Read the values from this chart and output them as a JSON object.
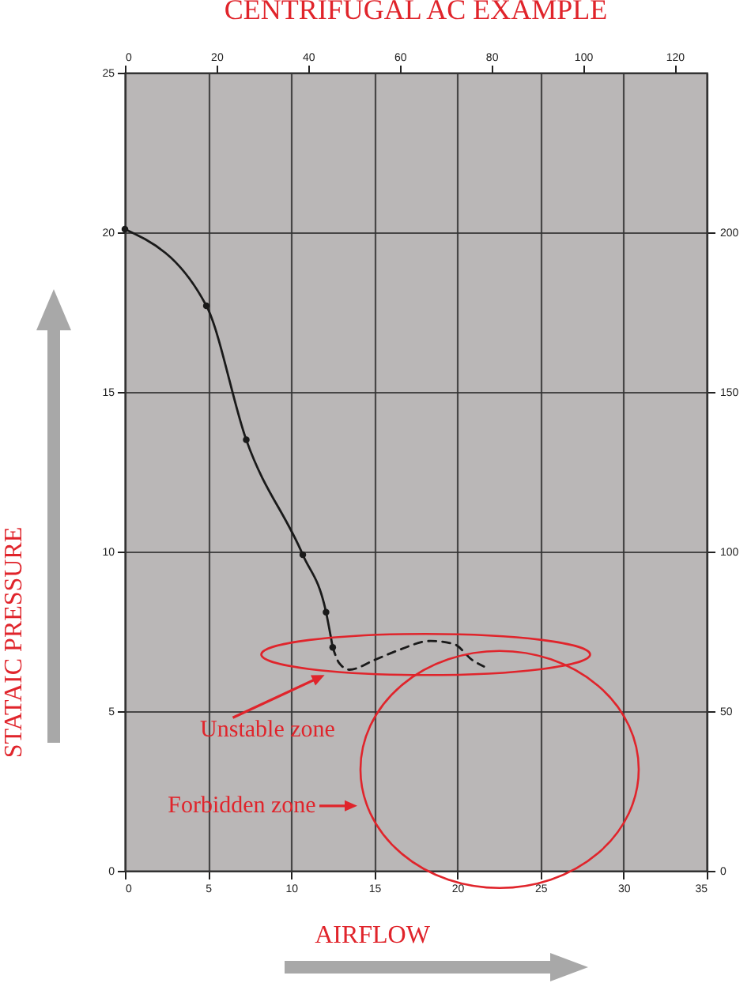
{
  "chart_data": {
    "type": "line",
    "title": "CENTRIFUGAL AC EXAMPLE",
    "xlabel": "AIRFLOW",
    "ylabel": "STATAIC PRESSURE",
    "xlim": [
      0,
      35
    ],
    "xticks": [
      0,
      5,
      10,
      15,
      20,
      25,
      30,
      35
    ],
    "ylim": [
      0,
      25
    ],
    "yticks": [
      0,
      5,
      10,
      15,
      20,
      25
    ],
    "x2lim": [
      0,
      127
    ],
    "x2ticks": [
      0,
      20,
      40,
      60,
      80,
      100,
      120
    ],
    "y2lim": [
      0,
      250
    ],
    "y2ticks": [
      0,
      50,
      100,
      150,
      200
    ],
    "grid": true,
    "series": [
      {
        "color": "#1a1a1a",
        "marker": "circle",
        "line_style": "solid",
        "x": [
          0,
          4.9,
          7.3,
          10.7,
          12.1,
          12.5
        ],
        "values": [
          20.1,
          17.7,
          13.5,
          9.9,
          8.1,
          7.0
        ]
      },
      {
        "color": "#1a1a1a",
        "marker": "none",
        "line_style": "dashed",
        "x": [
          12.5,
          12.9,
          13.5,
          15.0,
          16.4,
          18.4,
          19.8,
          20.9,
          21.6
        ],
        "values": [
          7.0,
          6.5,
          6.3,
          6.6,
          6.9,
          7.2,
          7.1,
          6.6,
          6.4
        ]
      }
    ],
    "annotations": [
      "Unstable zone",
      "Forbidden zone"
    ]
  }
}
